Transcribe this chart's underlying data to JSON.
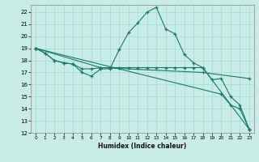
{
  "xlabel": "Humidex (Indice chaleur)",
  "ylabel": "",
  "bg_color": "#c8ece6",
  "grid_color": "#a8d8d0",
  "line_color": "#1a7a6e",
  "xlim": [
    -0.5,
    23.5
  ],
  "ylim": [
    12,
    22.6
  ],
  "yticks": [
    12,
    13,
    14,
    15,
    16,
    17,
    18,
    19,
    20,
    21,
    22
  ],
  "xticks": [
    0,
    1,
    2,
    3,
    4,
    5,
    6,
    7,
    8,
    9,
    10,
    11,
    12,
    13,
    14,
    15,
    16,
    17,
    18,
    19,
    20,
    21,
    22,
    23
  ],
  "lines": [
    {
      "x": [
        0,
        1,
        2,
        3,
        4,
        5,
        6,
        7,
        8,
        9,
        10,
        11,
        12,
        13,
        14,
        15,
        16,
        17,
        18,
        19,
        20,
        21,
        22,
        23
      ],
      "y": [
        19.0,
        18.6,
        18.0,
        17.8,
        17.7,
        17.0,
        16.7,
        17.3,
        17.3,
        18.9,
        20.3,
        21.1,
        22.0,
        22.4,
        20.6,
        20.2,
        18.5,
        17.8,
        17.4,
        16.4,
        16.5,
        15.0,
        14.3,
        12.3
      ]
    },
    {
      "x": [
        0,
        1,
        2,
        3,
        4,
        5,
        6,
        7,
        8,
        9,
        10,
        11,
        12,
        13,
        14,
        15,
        16,
        17,
        18,
        23
      ],
      "y": [
        19.0,
        18.6,
        18.0,
        17.8,
        17.7,
        17.3,
        17.3,
        17.4,
        17.4,
        17.4,
        17.4,
        17.4,
        17.4,
        17.4,
        17.4,
        17.4,
        17.4,
        17.4,
        17.4,
        12.3
      ]
    },
    {
      "x": [
        0,
        7,
        18,
        23
      ],
      "y": [
        19.0,
        17.4,
        17.0,
        16.5
      ]
    },
    {
      "x": [
        0,
        20,
        21,
        22,
        23
      ],
      "y": [
        19.0,
        15.2,
        14.3,
        14.0,
        12.3
      ]
    }
  ]
}
